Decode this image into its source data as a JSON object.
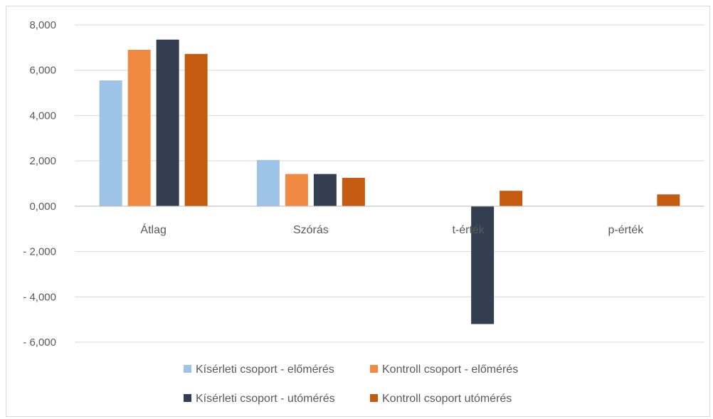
{
  "chart_data": {
    "type": "bar",
    "categories": [
      "Átlag",
      "Szórás",
      "t-érték",
      "p-érték"
    ],
    "series": [
      {
        "name": "Kísérleti csoport - előmérés",
        "color": "#9dc3e6",
        "values": [
          5.55,
          2.04,
          0,
          0
        ]
      },
      {
        "name": "Kontroll csoport - előmérés",
        "color": "#f08a43",
        "values": [
          6.9,
          1.42,
          0,
          0
        ]
      },
      {
        "name": "Kísérleti csoport - utómérés",
        "color": "#333f50",
        "values": [
          7.35,
          1.42,
          -5.2,
          0
        ]
      },
      {
        "name": "Kontroll csoport utómérés",
        "color": "#c55a11",
        "values": [
          6.72,
          1.25,
          0.68,
          0.52
        ]
      }
    ],
    "yticks": [
      "8,000",
      "6,000",
      "4,000",
      "2,000",
      "0,000",
      "- 2,000",
      "- 4,000",
      "- 6,000"
    ],
    "ylim": [
      -6,
      8
    ],
    "grid": true,
    "legend_position": "bottom"
  }
}
